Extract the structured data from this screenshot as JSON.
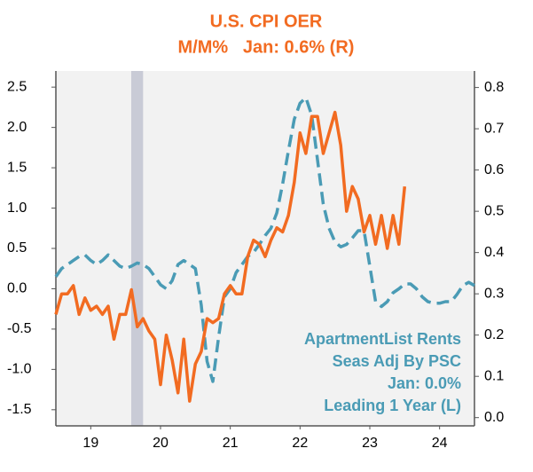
{
  "chart_data": {
    "type": "line",
    "title": "U.S. CPI OER",
    "subtitle": "M/M%   Jan: 0.6% (R)",
    "annotation": [
      "ApartmentList Rents",
      "Seas Adj By PSC",
      "Jan: 0.0%",
      "Leading 1 Year (L)"
    ],
    "xlim": [
      2019,
      2025
    ],
    "xticks": [
      {
        "value": 2019.5,
        "label": "19"
      },
      {
        "value": 2020.5,
        "label": "20"
      },
      {
        "value": 2021.5,
        "label": "21"
      },
      {
        "value": 2022.5,
        "label": "22"
      },
      {
        "value": 2023.5,
        "label": "23"
      },
      {
        "value": 2024.5,
        "label": "24"
      }
    ],
    "ylim": [
      -1.7,
      2.7
    ],
    "yticks": [
      2.5,
      {
        "value": 2.0,
        "label": "2.0"
      },
      1.5,
      {
        "value": 1.0,
        "label": "1.0"
      },
      0.5,
      {
        "value": 0,
        "label": "0.0"
      },
      -0.5,
      {
        "value": -1.0,
        "label": "-1.0"
      },
      -1.5
    ],
    "y2lim": [
      -0.02,
      0.84
    ],
    "y2ticks": [
      0.8,
      0.7,
      0.6,
      0.5,
      0.4,
      0.3,
      0.2,
      0.1,
      {
        "value": 0,
        "label": "0.0"
      }
    ],
    "shaded_regions": [
      [
        2020.08,
        2020.25
      ]
    ],
    "shade_color": "#c9cbd6",
    "series": [
      {
        "name": "U.S. CPI OER",
        "color": "#f26b21",
        "axis": "y2",
        "dash": false,
        "x": [
          2019,
          2019.083,
          2019.167,
          2019.25,
          2019.333,
          2019.417,
          2019.5,
          2019.583,
          2019.667,
          2019.75,
          2019.833,
          2019.917,
          2020,
          2020.083,
          2020.167,
          2020.25,
          2020.333,
          2020.417,
          2020.5,
          2020.583,
          2020.667,
          2020.75,
          2020.833,
          2020.917,
          2021,
          2021.083,
          2021.167,
          2021.25,
          2021.333,
          2021.417,
          2021.5,
          2021.583,
          2021.667,
          2021.75,
          2021.833,
          2021.917,
          2022,
          2022.083,
          2022.167,
          2022.25,
          2022.333,
          2022.417,
          2022.5,
          2022.583,
          2022.667,
          2022.75,
          2022.833,
          2022.917,
          2023,
          2023.083,
          2023.167,
          2023.25,
          2023.333,
          2023.417,
          2023.5,
          2023.583,
          2023.667,
          2023.75,
          2023.833,
          2023.917,
          2024
        ],
        "values": [
          0.25,
          0.3,
          0.3,
          0.32,
          0.25,
          0.29,
          0.26,
          0.27,
          0.25,
          0.27,
          0.19,
          0.25,
          0.25,
          0.31,
          0.22,
          0.24,
          0.21,
          0.19,
          0.08,
          0.2,
          0.14,
          0.06,
          0.19,
          0.04,
          0.13,
          0.16,
          0.24,
          0.23,
          0.24,
          0.3,
          0.32,
          0.3,
          0.3,
          0.39,
          0.43,
          0.42,
          0.39,
          0.43,
          0.46,
          0.45,
          0.49,
          0.57,
          0.69,
          0.64,
          0.73,
          0.73,
          0.64,
          0.69,
          0.74,
          0.66,
          0.5,
          0.56,
          0.53,
          0.45,
          0.49,
          0.42,
          0.49,
          0.41,
          0.49,
          0.42,
          0.56
        ]
      },
      {
        "name": "ApartmentList Rents",
        "color": "#4a9bb5",
        "axis": "y",
        "dash": true,
        "x": [
          2019,
          2019.083,
          2019.167,
          2019.25,
          2019.333,
          2019.417,
          2019.5,
          2019.583,
          2019.667,
          2019.75,
          2019.833,
          2019.917,
          2020,
          2020.083,
          2020.167,
          2020.25,
          2020.333,
          2020.417,
          2020.5,
          2020.583,
          2020.667,
          2020.75,
          2020.833,
          2020.917,
          2021,
          2021.083,
          2021.167,
          2021.25,
          2021.333,
          2021.417,
          2021.5,
          2021.583,
          2021.667,
          2021.75,
          2021.833,
          2021.917,
          2022,
          2022.083,
          2022.167,
          2022.25,
          2022.333,
          2022.417,
          2022.5,
          2022.583,
          2022.667,
          2022.75,
          2022.833,
          2022.917,
          2023,
          2023.083,
          2023.167,
          2023.25,
          2023.333,
          2023.417,
          2023.5,
          2023.583,
          2023.667,
          2023.75,
          2023.833,
          2023.917,
          2024,
          2024.083,
          2024.167,
          2024.25,
          2024.333,
          2024.417,
          2024.5,
          2024.583,
          2024.667,
          2024.75,
          2024.833,
          2024.917,
          2025
        ],
        "values": [
          0.15,
          0.25,
          0.3,
          0.35,
          0.4,
          0.42,
          0.35,
          0.3,
          0.35,
          0.42,
          0.35,
          0.28,
          0.25,
          0.28,
          0.32,
          0.3,
          0.25,
          0.15,
          0.05,
          0.0,
          0.1,
          0.3,
          0.35,
          0.3,
          0.25,
          -0.2,
          -0.9,
          -1.15,
          -0.6,
          -0.1,
          0.0,
          0.2,
          0.3,
          0.4,
          0.45,
          0.55,
          0.66,
          0.75,
          0.94,
          1.3,
          1.71,
          2.1,
          2.3,
          2.37,
          2.15,
          1.6,
          1.05,
          0.75,
          0.58,
          0.52,
          0.55,
          0.63,
          0.72,
          0.72,
          0.28,
          -0.16,
          -0.22,
          -0.16,
          -0.05,
          0.0,
          0.06,
          0.06,
          0.0,
          -0.1,
          -0.16,
          -0.18,
          -0.18,
          -0.16,
          -0.16,
          -0.07,
          0.04,
          0.08,
          0.04
        ]
      }
    ]
  }
}
